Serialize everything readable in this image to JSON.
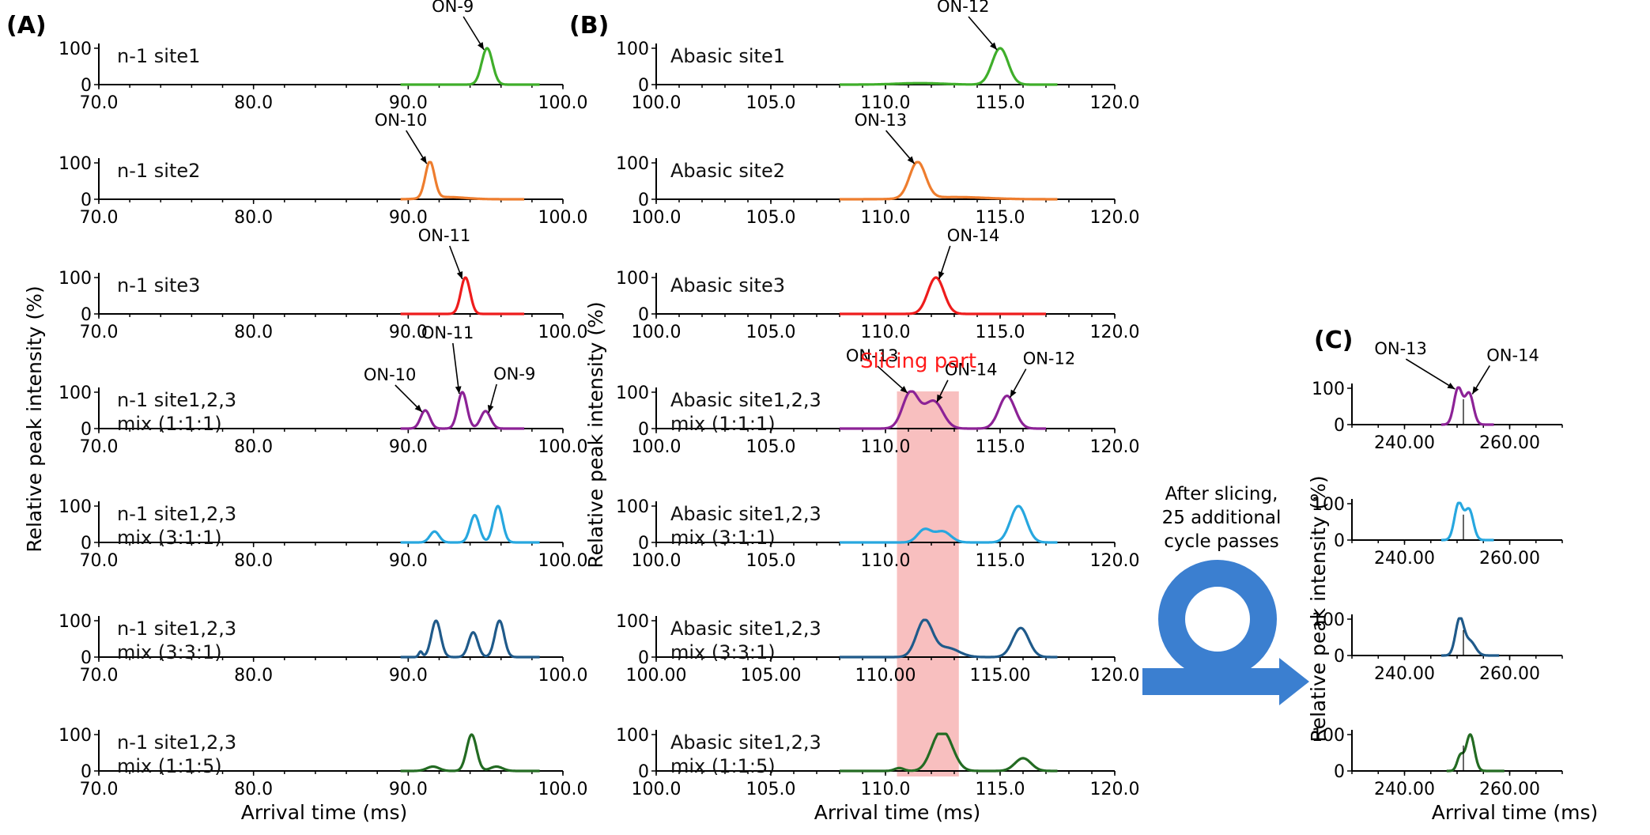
{
  "panel_labels": {
    "A": "(A)",
    "B": "(B)",
    "C": "(C)"
  },
  "axis_titles": {
    "y_left": "Relative peak intensity (%)",
    "y_mid": "Relative peak intensity (%)",
    "y_right": "Relative peak intensity (%)",
    "x_A": "Arrival time (ms)",
    "x_B": "Arrival time (ms)",
    "x_C": "Arrival time (ms)"
  },
  "slicing": {
    "label": "Slicing part",
    "range": [
      110.5,
      113.2
    ],
    "color": "#f7b4b4"
  },
  "cycle": {
    "line1": "After slicing,",
    "line2": "25 additional",
    "line3": "cycle passes",
    "color": "#3b7fd0"
  },
  "colors": {
    "green": "#3fae2a",
    "orange": "#ee7d2e",
    "red": "#ee1c1c",
    "purple": "#8c2296",
    "lightblue": "#27a7df",
    "navy": "#1f5a8a",
    "darkgreen": "#236b22"
  },
  "chart_data": [
    {
      "type": "line",
      "panel": "A",
      "xlabel": "Arrival time (ms)",
      "ylabel": "Relative peak intensity (%)",
      "xlim": [
        70,
        100
      ],
      "ylim": [
        0,
        100
      ],
      "xticks": [
        "70.0",
        "80.0",
        "90.0",
        "100.0"
      ],
      "yticks": [
        "0",
        "100"
      ],
      "subplots": [
        {
          "label": [
            "n-1 site1"
          ],
          "color": "green",
          "range": [
            89.5,
            98.5
          ],
          "peaks": [
            [
              95.1,
              100,
              0.35
            ]
          ],
          "annotations": [
            {
              "text": "ON-9",
              "peak_x": 95.1
            }
          ]
        },
        {
          "label": [
            "n-1 site2"
          ],
          "color": "orange",
          "range": [
            89.5,
            97.5
          ],
          "peaks": [
            [
              91.4,
              100,
              0.3
            ],
            [
              92.5,
              6,
              1.2
            ]
          ],
          "annotations": [
            {
              "text": "ON-10",
              "peak_x": 91.4
            }
          ]
        },
        {
          "label": [
            "n-1 site3"
          ],
          "color": "red",
          "range": [
            89.5,
            97.5
          ],
          "peaks": [
            [
              93.7,
              100,
              0.3
            ]
          ],
          "annotations": [
            {
              "text": "ON-11",
              "peak_x": 93.7
            }
          ]
        },
        {
          "label": [
            "n-1 site1,2,3",
            "mix (1:1:1)"
          ],
          "color": "purple",
          "range": [
            89.5,
            97.5
          ],
          "peaks": [
            [
              91.1,
              50,
              0.3
            ],
            [
              93.5,
              100,
              0.3
            ],
            [
              95.0,
              48,
              0.32
            ]
          ],
          "annotations": [
            {
              "text": "ON-10",
              "peak_x": 91.1
            },
            {
              "text": "ON-11",
              "peak_x": 93.5
            },
            {
              "text": "ON-9",
              "peak_x": 95.0
            }
          ]
        },
        {
          "label": [
            "n-1 site1,2,3",
            "mix (3:1:1)"
          ],
          "color": "lightblue",
          "range": [
            89.5,
            98.5
          ],
          "peaks": [
            [
              91.7,
              30,
              0.3
            ],
            [
              94.3,
              75,
              0.3
            ],
            [
              95.8,
              100,
              0.3
            ]
          ],
          "annotations": []
        },
        {
          "label": [
            "n-1 site1,2,3",
            "mix (3:3:1)"
          ],
          "color": "navy",
          "range": [
            89.5,
            98.5
          ],
          "peaks": [
            [
              90.8,
              15,
              0.12
            ],
            [
              91.8,
              100,
              0.3
            ],
            [
              94.2,
              68,
              0.3
            ],
            [
              95.9,
              100,
              0.3
            ]
          ],
          "annotations": []
        },
        {
          "label": [
            "n-1 site1,2,3",
            "mix (1:1:5)"
          ],
          "color": "darkgreen",
          "range": [
            89.5,
            98.5
          ],
          "peaks": [
            [
              91.6,
              12,
              0.4
            ],
            [
              94.1,
              100,
              0.32
            ],
            [
              95.7,
              12,
              0.4
            ]
          ],
          "annotations": []
        }
      ]
    },
    {
      "type": "line",
      "panel": "B",
      "xlabel": "Arrival time (ms)",
      "ylabel": "Relative peak intensity (%)",
      "xlim": [
        100,
        120
      ],
      "ylim": [
        0,
        100
      ],
      "subplots": [
        {
          "label": [
            "Abasic site1"
          ],
          "color": "green",
          "xticks": [
            "100.0",
            "105.0",
            "110.0",
            "115.0",
            "120.0"
          ],
          "range": [
            108,
            117.5
          ],
          "peaks": [
            [
              115.0,
              100,
              0.35
            ],
            [
              111.5,
              4,
              1.0
            ]
          ],
          "annotations": [
            {
              "text": "ON-12",
              "peak_x": 115.0
            }
          ]
        },
        {
          "label": [
            "Abasic site2"
          ],
          "color": "orange",
          "xticks": [
            "100.0",
            "105.0",
            "110.0",
            "115.0",
            "120.0"
          ],
          "range": [
            108,
            117.5
          ],
          "peaks": [
            [
              111.4,
              100,
              0.35
            ],
            [
              113,
              6,
              1.4
            ]
          ],
          "annotations": [
            {
              "text": "ON-13",
              "peak_x": 111.4
            }
          ]
        },
        {
          "label": [
            "Abasic site3"
          ],
          "color": "red",
          "xticks": [
            "100.0",
            "105.0",
            "110.0",
            "115.0",
            "120.0"
          ],
          "range": [
            108,
            117
          ],
          "peaks": [
            [
              112.2,
              100,
              0.35
            ]
          ],
          "annotations": [
            {
              "text": "ON-14",
              "peak_x": 112.2
            }
          ]
        },
        {
          "label": [
            "Abasic site1,2,3",
            "mix (1:1:1)"
          ],
          "color": "purple",
          "xticks": [
            "100.0",
            "105.0",
            "110.0",
            "115.0",
            "120.0"
          ],
          "range": [
            108,
            117
          ],
          "peaks": [
            [
              111.1,
              100,
              0.35
            ],
            [
              112.1,
              75,
              0.4
            ],
            [
              115.3,
              90,
              0.35
            ]
          ],
          "annotations": [
            {
              "text": "ON-13",
              "peak_x": 111.1
            },
            {
              "text": "ON-14",
              "peak_x": 112.1
            },
            {
              "text": "ON-12",
              "peak_x": 115.3
            }
          ]
        },
        {
          "label": [
            "Abasic site1,2,3",
            "mix (3:1:1)"
          ],
          "color": "lightblue",
          "xticks": [
            "100.0",
            "105.0",
            "110.0",
            "115.0",
            "120.0"
          ],
          "range": [
            108,
            117.5
          ],
          "peaks": [
            [
              111.7,
              35,
              0.3
            ],
            [
              112.5,
              30,
              0.35
            ],
            [
              115.8,
              100,
              0.35
            ]
          ],
          "annotations": []
        },
        {
          "label": [
            "Abasic site1,2,3",
            "mix (3:3:1)"
          ],
          "color": "navy",
          "xticks": [
            "100.00",
            "105.00",
            "110.00",
            "115.00",
            "120.0"
          ],
          "range": [
            108,
            117.5
          ],
          "peaks": [
            [
              111.7,
              100,
              0.35
            ],
            [
              112.7,
              25,
              0.5
            ],
            [
              115.9,
              80,
              0.35
            ]
          ],
          "annotations": []
        },
        {
          "label": [
            "Abasic site1,2,3",
            "mix (1:1:5)"
          ],
          "color": "darkgreen",
          "xticks": [
            "100.0",
            "105.0",
            "110.0",
            "115.0",
            "120.0"
          ],
          "range": [
            108,
            117.5
          ],
          "peaks": [
            [
              110.6,
              8,
              0.2
            ],
            [
              112.2,
              42,
              0.35
            ],
            [
              112.6,
              85,
              0.4
            ],
            [
              116.0,
              35,
              0.35
            ]
          ],
          "annotations": []
        }
      ]
    },
    {
      "type": "line",
      "panel": "C",
      "xlabel": "Arrival time (ms)",
      "ylabel": "Relative peak intensity (%)",
      "xlim": [
        230,
        270
      ],
      "ylim": [
        0,
        100
      ],
      "xticks": [
        "240.00",
        "260.00"
      ],
      "yticks": [
        "0",
        "100"
      ],
      "subplots": [
        {
          "color": "purple",
          "range": [
            247,
            257
          ],
          "peaks": [
            [
              250.2,
              100,
              0.8
            ],
            [
              252.3,
              85,
              0.8
            ]
          ],
          "annotations": [
            {
              "text": "ON-13",
              "peak_x": 250.2
            },
            {
              "text": "ON-14",
              "peak_x": 252.3
            }
          ]
        },
        {
          "color": "lightblue",
          "range": [
            247,
            257
          ],
          "peaks": [
            [
              250.3,
              100,
              0.8
            ],
            [
              252.3,
              82,
              0.8
            ]
          ],
          "annotations": []
        },
        {
          "color": "navy",
          "range": [
            247,
            258
          ],
          "peaks": [
            [
              250.5,
              100,
              0.8
            ],
            [
              252.5,
              38,
              1.0
            ]
          ],
          "annotations": []
        },
        {
          "color": "darkgreen",
          "range": [
            248,
            259
          ],
          "peaks": [
            [
              250.6,
              40,
              0.6
            ],
            [
              252.5,
              100,
              0.8
            ]
          ],
          "annotations": []
        }
      ]
    }
  ]
}
